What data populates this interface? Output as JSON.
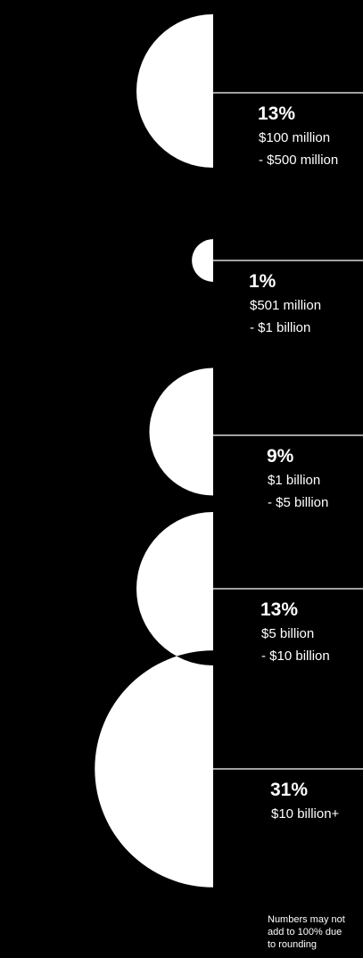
{
  "chart_data": {
    "type": "pie",
    "style": "stacked half-circles (semicircles on the left of a vertical axis, area proportional to share)",
    "series": [
      {
        "value": 13,
        "percent_label": "13%",
        "range_line1": "$100 million",
        "range_line2": "- $500 million"
      },
      {
        "value": 1,
        "percent_label": "1%",
        "range_line1": "$501 million",
        "range_line2": "- $1 billion"
      },
      {
        "value": 9,
        "percent_label": "9%",
        "range_line1": "$1 billion",
        "range_line2": "- $5 billion"
      },
      {
        "value": 13,
        "percent_label": "13%",
        "range_line1": "$5 billion",
        "range_line2": "- $10 billion"
      },
      {
        "value": 31,
        "percent_label": "31%",
        "range_line1": "$10 billion+",
        "range_line2": ""
      }
    ],
    "footnote_lines": [
      "Numbers may not",
      "add to 100% due",
      "to rounding"
    ],
    "colors": {
      "background": "#000000",
      "shape": "#ffffff",
      "line": "#ffffff",
      "text": "#ffffff"
    }
  }
}
